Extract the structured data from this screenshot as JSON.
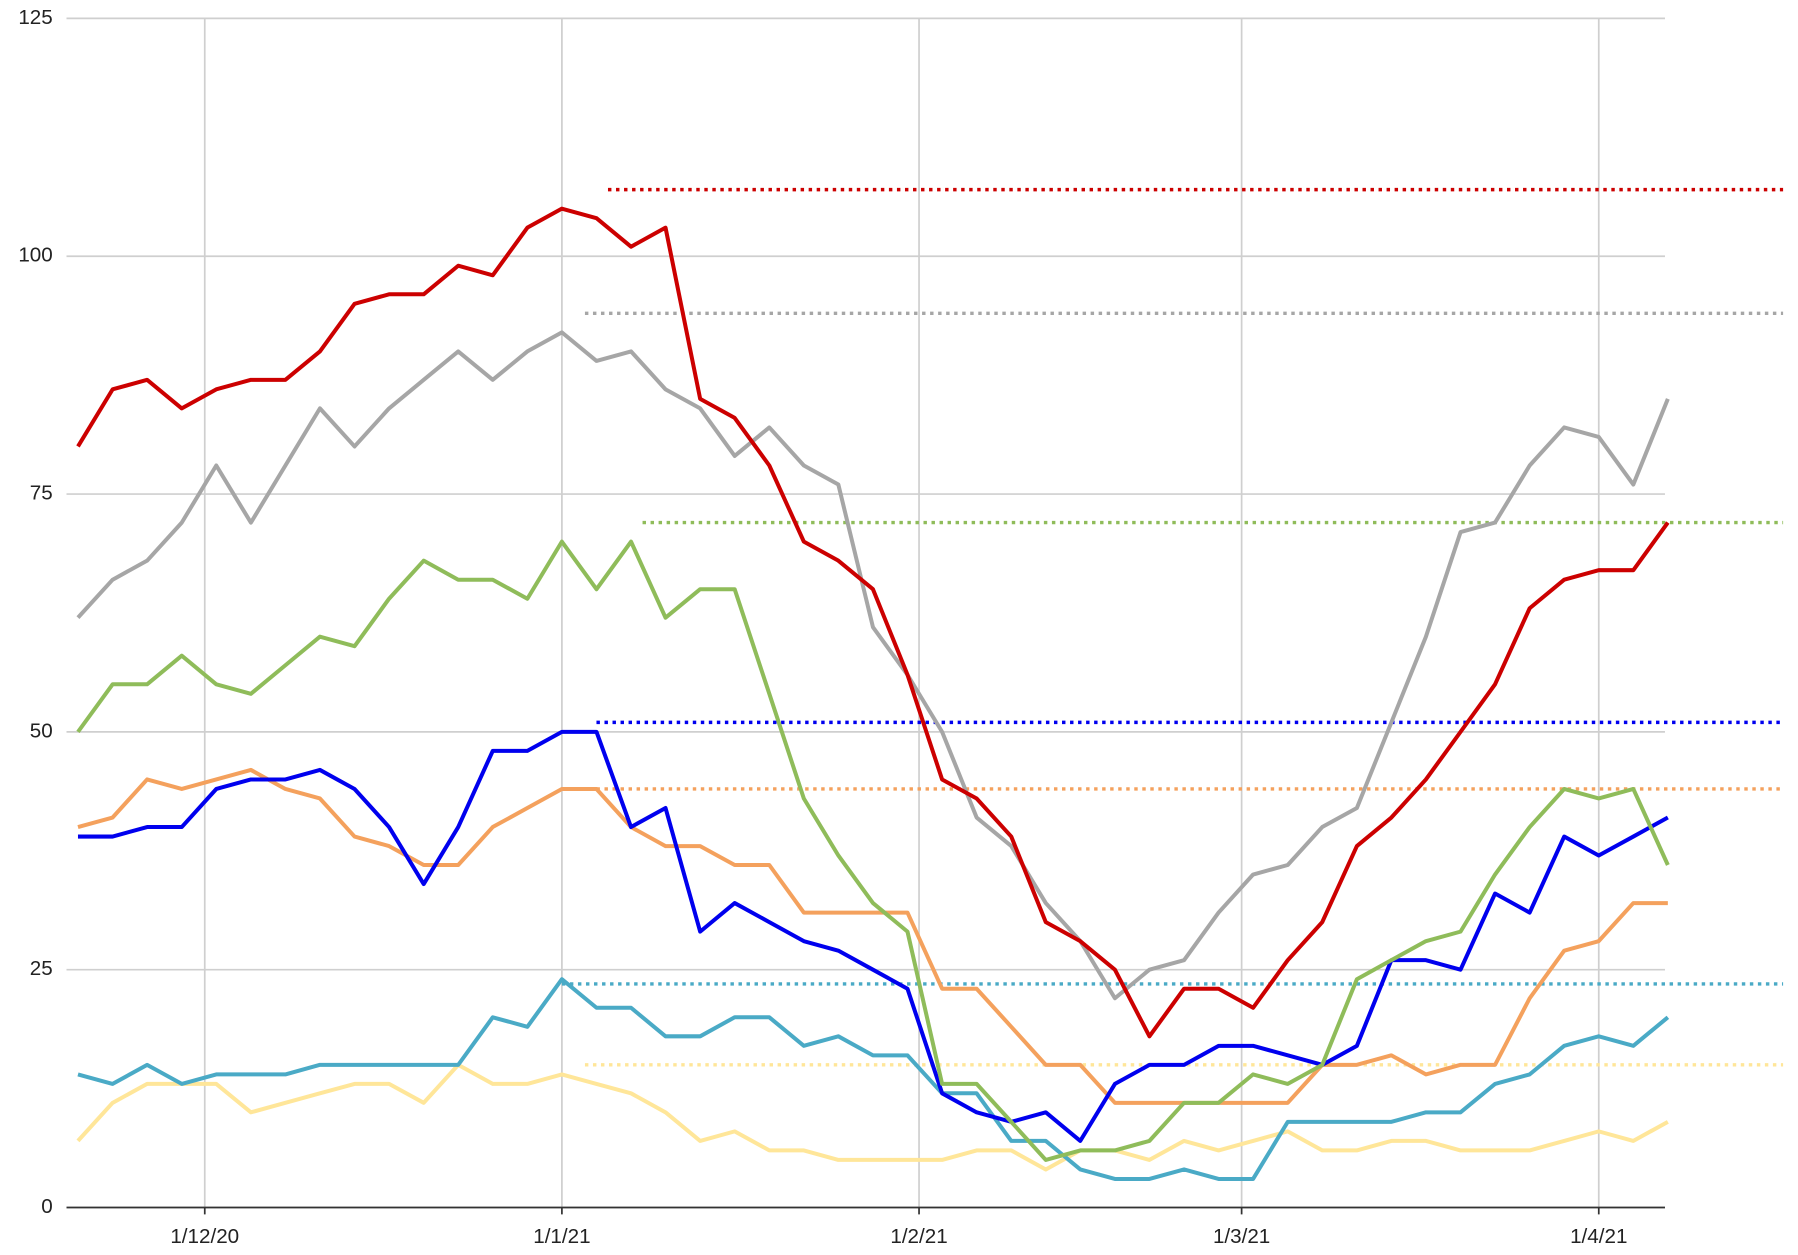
{
  "chart_data": {
    "type": "line",
    "x": [
      "2020-11-20",
      "2020-11-23",
      "2020-11-26",
      "2020-11-29",
      "2020-12-02",
      "2020-12-05",
      "2020-12-08",
      "2020-12-11",
      "2020-12-14",
      "2020-12-17",
      "2020-12-20",
      "2020-12-23",
      "2020-12-26",
      "2020-12-29",
      "2021-01-01",
      "2021-01-04",
      "2021-01-07",
      "2021-01-10",
      "2021-01-13",
      "2021-01-16",
      "2021-01-19",
      "2021-01-22",
      "2021-01-25",
      "2021-01-28",
      "2021-01-31",
      "2021-02-03",
      "2021-02-06",
      "2021-02-09",
      "2021-02-12",
      "2021-02-15",
      "2021-02-18",
      "2021-02-21",
      "2021-02-24",
      "2021-02-27",
      "2021-03-02",
      "2021-03-05",
      "2021-03-08",
      "2021-03-11",
      "2021-03-14",
      "2021-03-17",
      "2021-03-20",
      "2021-03-23",
      "2021-03-26",
      "2021-03-29",
      "2021-04-01",
      "2021-04-04",
      "2021-04-07"
    ],
    "series": [
      {
        "color": "#cc0000",
        "values": [
          80,
          86,
          87,
          84,
          86,
          87,
          87,
          90,
          95,
          96,
          96,
          99,
          98,
          103,
          105,
          104,
          101,
          103,
          85,
          83,
          78,
          70,
          68,
          65,
          56,
          45,
          43,
          39,
          30,
          28,
          25,
          18,
          23,
          23,
          21,
          26,
          30,
          38,
          41,
          45,
          50,
          55,
          63,
          66,
          67,
          67,
          72
        ],
        "peak": {
          "x": "2021-01-05",
          "value": 107
        }
      },
      {
        "color": "#a6a6a6",
        "values": [
          62,
          66,
          68,
          72,
          78,
          72,
          78,
          84,
          80,
          84,
          87,
          90,
          87,
          90,
          92,
          89,
          90,
          86,
          84,
          79,
          82,
          78,
          76,
          61,
          56,
          50,
          41,
          38,
          32,
          28,
          22,
          25,
          26,
          31,
          35,
          36,
          40,
          42,
          51,
          60,
          71,
          72,
          78,
          82,
          81,
          76,
          85
        ],
        "peak": {
          "x": "2021-01-03",
          "value": 94
        }
      },
      {
        "color": "#8fbc5a",
        "values": [
          50,
          55,
          55,
          58,
          55,
          54,
          57,
          60,
          59,
          64,
          68,
          66,
          66,
          64,
          70,
          65,
          70,
          62,
          65,
          65,
          54,
          43,
          37,
          32,
          29,
          13,
          13,
          9,
          5,
          6,
          6,
          7,
          11,
          11,
          14,
          13,
          15,
          24,
          26,
          28,
          29,
          35,
          40,
          44,
          43,
          44,
          36
        ],
        "peak": {
          "x": "2021-01-08",
          "value": 72
        }
      },
      {
        "color": "#0000ee",
        "values": [
          39,
          39,
          40,
          40,
          44,
          45,
          45,
          46,
          44,
          40,
          34,
          40,
          48,
          48,
          50,
          50,
          40,
          42,
          29,
          32,
          30,
          28,
          27,
          25,
          23,
          12,
          10,
          9,
          10,
          7,
          13,
          15,
          15,
          17,
          17,
          16,
          15,
          17,
          26,
          26,
          25,
          33,
          31,
          39,
          37,
          39,
          41
        ],
        "peak": {
          "x": "2021-01-04",
          "value": 51
        }
      },
      {
        "color": "#f4a15d",
        "values": [
          40,
          41,
          45,
          44,
          45,
          46,
          44,
          43,
          39,
          38,
          36,
          36,
          40,
          42,
          44,
          44,
          40,
          38,
          38,
          36,
          36,
          31,
          31,
          31,
          31,
          23,
          23,
          19,
          15,
          15,
          11,
          11,
          11,
          11,
          11,
          11,
          15,
          15,
          16,
          14,
          15,
          15,
          22,
          27,
          28,
          32,
          32
        ],
        "peak": {
          "x": "2021-01-04",
          "value": 44
        }
      },
      {
        "color": "#4aaac6",
        "values": [
          14,
          13,
          15,
          13,
          14,
          14,
          14,
          15,
          15,
          15,
          15,
          15,
          20,
          19,
          24,
          21,
          21,
          18,
          18,
          20,
          20,
          17,
          18,
          16,
          16,
          12,
          12,
          7,
          7,
          4,
          3,
          3,
          4,
          3,
          3,
          9,
          9,
          9,
          9,
          10,
          10,
          13,
          14,
          17,
          18,
          17,
          20
        ],
        "peak": {
          "x": "2021-01-01",
          "value": 23.5
        }
      },
      {
        "color": "#ffe699",
        "values": [
          7,
          11,
          13,
          13,
          13,
          10,
          11,
          12,
          13,
          13,
          11,
          15,
          13,
          13,
          14,
          13,
          12,
          10,
          7,
          8,
          6,
          6,
          5,
          5,
          5,
          5,
          6,
          6,
          4,
          6,
          6,
          5,
          7,
          6,
          7,
          8,
          6,
          6,
          7,
          7,
          6,
          6,
          6,
          7,
          8,
          7,
          9
        ],
        "peak": {
          "x": "2021-01-03",
          "value": 15
        }
      }
    ],
    "xlim": [
      "2020-11-19",
      "2021-04-17"
    ],
    "xticks": [
      {
        "value": "2020-12-01",
        "label": "1/12/20"
      },
      {
        "value": "2021-01-01",
        "label": "1/1/21"
      },
      {
        "value": "2021-02-01",
        "label": "1/2/21"
      },
      {
        "value": "2021-03-01",
        "label": "1/3/21"
      },
      {
        "value": "2021-04-01",
        "label": "1/4/21"
      }
    ],
    "ylim": [
      0,
      125
    ],
    "yticks": [
      0,
      25,
      50,
      75,
      100,
      125
    ],
    "grid": true
  }
}
